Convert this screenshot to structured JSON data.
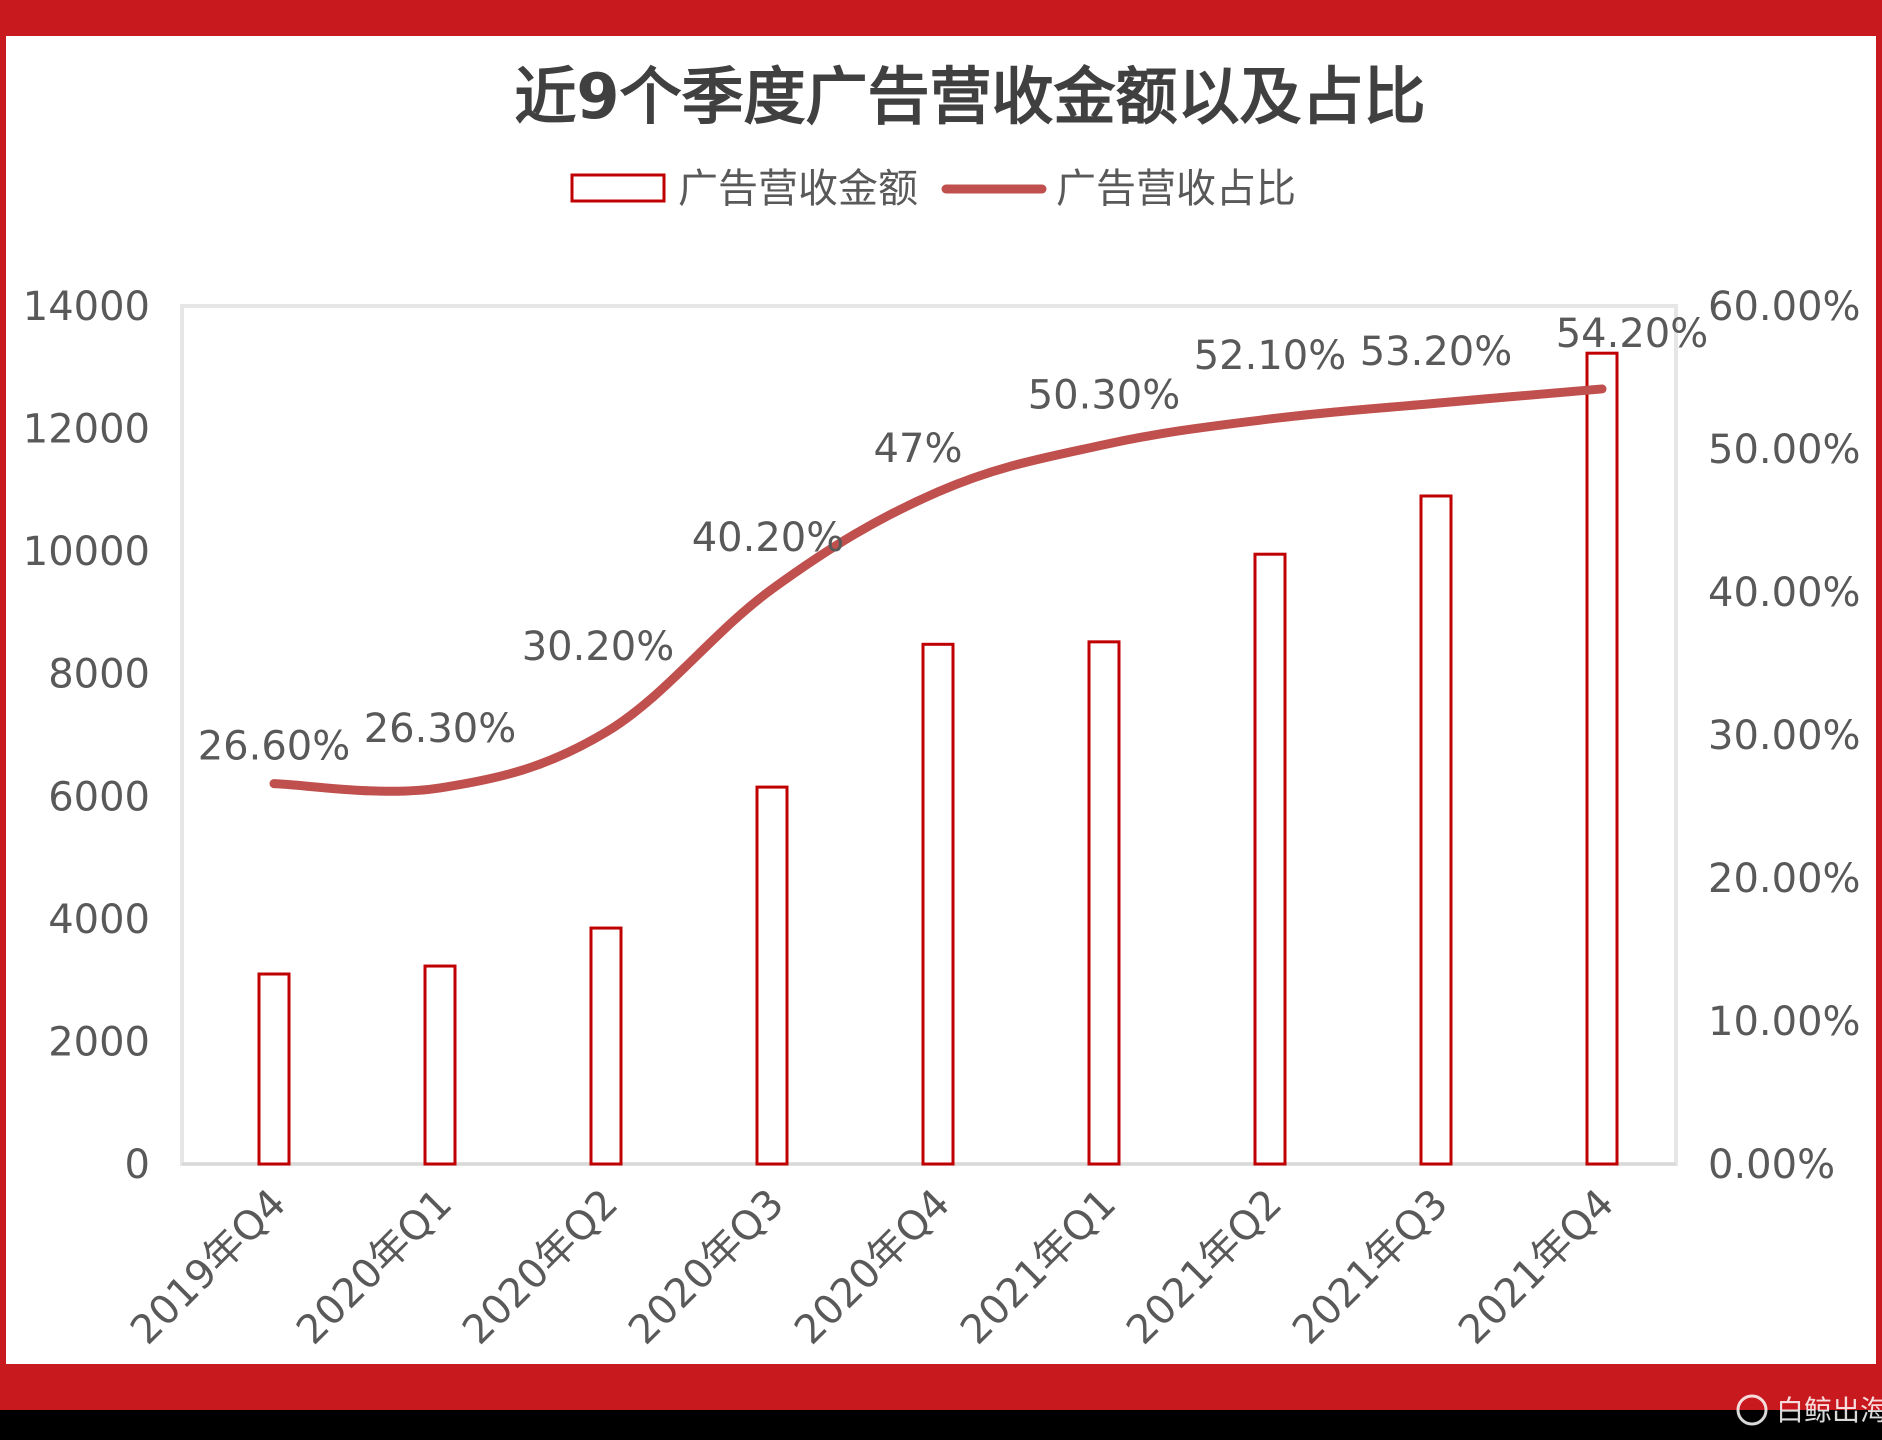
{
  "chart_data": {
    "type": "bar",
    "title": "近9个季度广告营收金额以及占比",
    "categories": [
      "2019年Q4",
      "2020年Q1",
      "2020年Q2",
      "2020年Q3",
      "2020年Q4",
      "2021年Q1",
      "2021年Q2",
      "2021年Q3",
      "2021年Q4"
    ],
    "series": [
      {
        "name": "广告营收金额",
        "type": "bar",
        "axis": "left",
        "values": [
          3100,
          3230,
          3850,
          6150,
          8480,
          8520,
          9950,
          10900,
          13230
        ]
      },
      {
        "name": "广告营收占比",
        "type": "line",
        "axis": "right",
        "values": [
          26.6,
          26.3,
          30.2,
          40.2,
          47,
          50.3,
          52.1,
          53.2,
          54.2
        ],
        "labels": [
          "26.60%",
          "26.30%",
          "30.20%",
          "40.20%",
          "47%",
          "50.30%",
          "52.10%",
          "53.20%",
          "54.20%"
        ]
      }
    ],
    "y_left": {
      "min": 0,
      "max": 14000,
      "step": 2000,
      "ticks": [
        "0",
        "2000",
        "4000",
        "6000",
        "8000",
        "10000",
        "12000",
        "14000"
      ]
    },
    "y_right": {
      "min": 0,
      "max": 60,
      "step": 10,
      "ticks": [
        "0.00%",
        "10.00%",
        "20.00%",
        "30.00%",
        "40.00%",
        "50.00%",
        "60.00%"
      ]
    },
    "legend_position": "top-center",
    "grid": false
  },
  "colors": {
    "frame": "#C8191F",
    "bar_stroke": "#C00000",
    "bar_fill": "#FFFFFF",
    "line": "#C0504D",
    "text": "#595959",
    "title": "#404040"
  },
  "watermark_text": "白鲸出海"
}
